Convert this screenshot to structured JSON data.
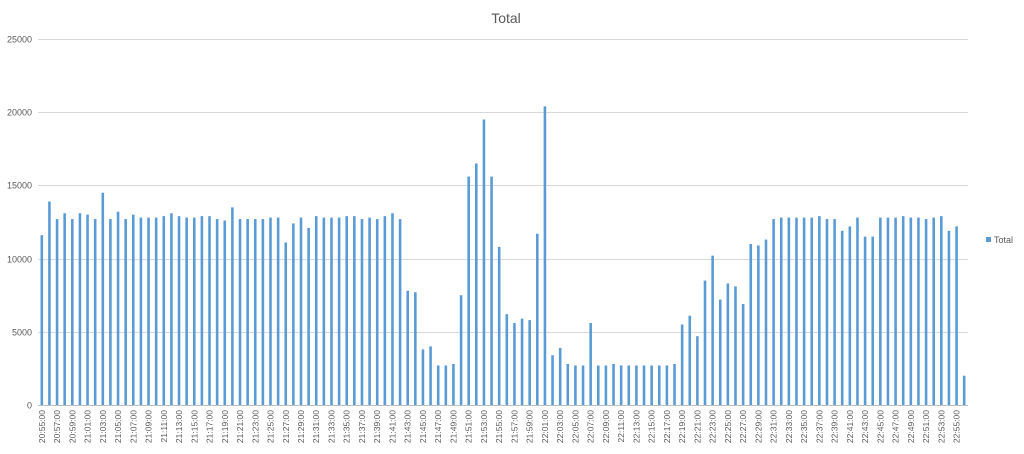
{
  "chart_data": {
    "type": "bar",
    "title": "Total",
    "ylim": [
      0,
      25000
    ],
    "yticks": [
      0,
      5000,
      10000,
      15000,
      20000,
      25000
    ],
    "grid": true,
    "legend_position": "right",
    "series": [
      {
        "name": "Total",
        "color": "#5B9BD5",
        "values": [
          11600,
          13900,
          12700,
          13100,
          12700,
          13100,
          13000,
          12700,
          14500,
          12700,
          13200,
          12700,
          13000,
          12800,
          12800,
          12800,
          12900,
          13100,
          12900,
          12800,
          12800,
          12900,
          12900,
          12700,
          12600,
          13500,
          12700,
          12700,
          12700,
          12700,
          12800,
          12800,
          11100,
          12400,
          12800,
          12100,
          12900,
          12800,
          12800,
          12800,
          12900,
          12900,
          12700,
          12800,
          12700,
          12900,
          13100,
          12700,
          7800,
          7700,
          3800,
          4000,
          2700,
          2700,
          2800,
          7500,
          15600,
          16500,
          19500,
          15600,
          10800,
          6200,
          5600,
          5900,
          5800,
          11700,
          20400,
          3400,
          3900,
          2800,
          2700,
          2700,
          5600,
          2700,
          2700,
          2800,
          2700,
          2700,
          2700,
          2700,
          2700,
          2700,
          2700,
          2800,
          5500,
          6100,
          4700,
          8500,
          10200,
          7200,
          8300,
          8100,
          6900,
          11000,
          10900,
          11300,
          12700,
          12800,
          12800,
          12800,
          12800,
          12800,
          12900,
          12700,
          12700,
          11900,
          12200,
          12800,
          11500,
          11500,
          12800,
          12800,
          12800,
          12900,
          12800,
          12800,
          12700,
          12800,
          12900,
          11900,
          12200,
          2000
        ]
      }
    ],
    "x_labels": [
      "20:55:00",
      "20:57:00",
      "20:59:00",
      "21:01:00",
      "21:03:00",
      "21:05:00",
      "21:07:00",
      "21:09:00",
      "21:11:00",
      "21:13:00",
      "21:15:00",
      "21:17:00",
      "21:19:00",
      "21:21:00",
      "21:23:00",
      "21:25:00",
      "21:27:00",
      "21:29:00",
      "21:31:00",
      "21:33:00",
      "21:35:00",
      "21:37:00",
      "21:39:00",
      "21:41:00",
      "21:43:00",
      "21:45:00",
      "21:47:00",
      "21:49:00",
      "21:51:00",
      "21:53:00",
      "21:55:00",
      "21:57:00",
      "21:59:00",
      "22:01:00",
      "22:03:00",
      "22:05:00",
      "22:07:00",
      "22:09:00",
      "22:11:00",
      "22:13:00",
      "22:15:00",
      "22:17:00",
      "22:19:00",
      "22:21:00",
      "22:23:00",
      "22:25:00",
      "22:27:00",
      "22:29:00",
      "22:31:00",
      "22:33:00",
      "22:35:00",
      "22:37:00",
      "22:39:00",
      "22:41:00",
      "22:43:00",
      "22:45:00",
      "22:47:00",
      "22:49:00",
      "22:51:00",
      "22:53:00",
      "22:55:00"
    ],
    "x_label_every": 2
  }
}
